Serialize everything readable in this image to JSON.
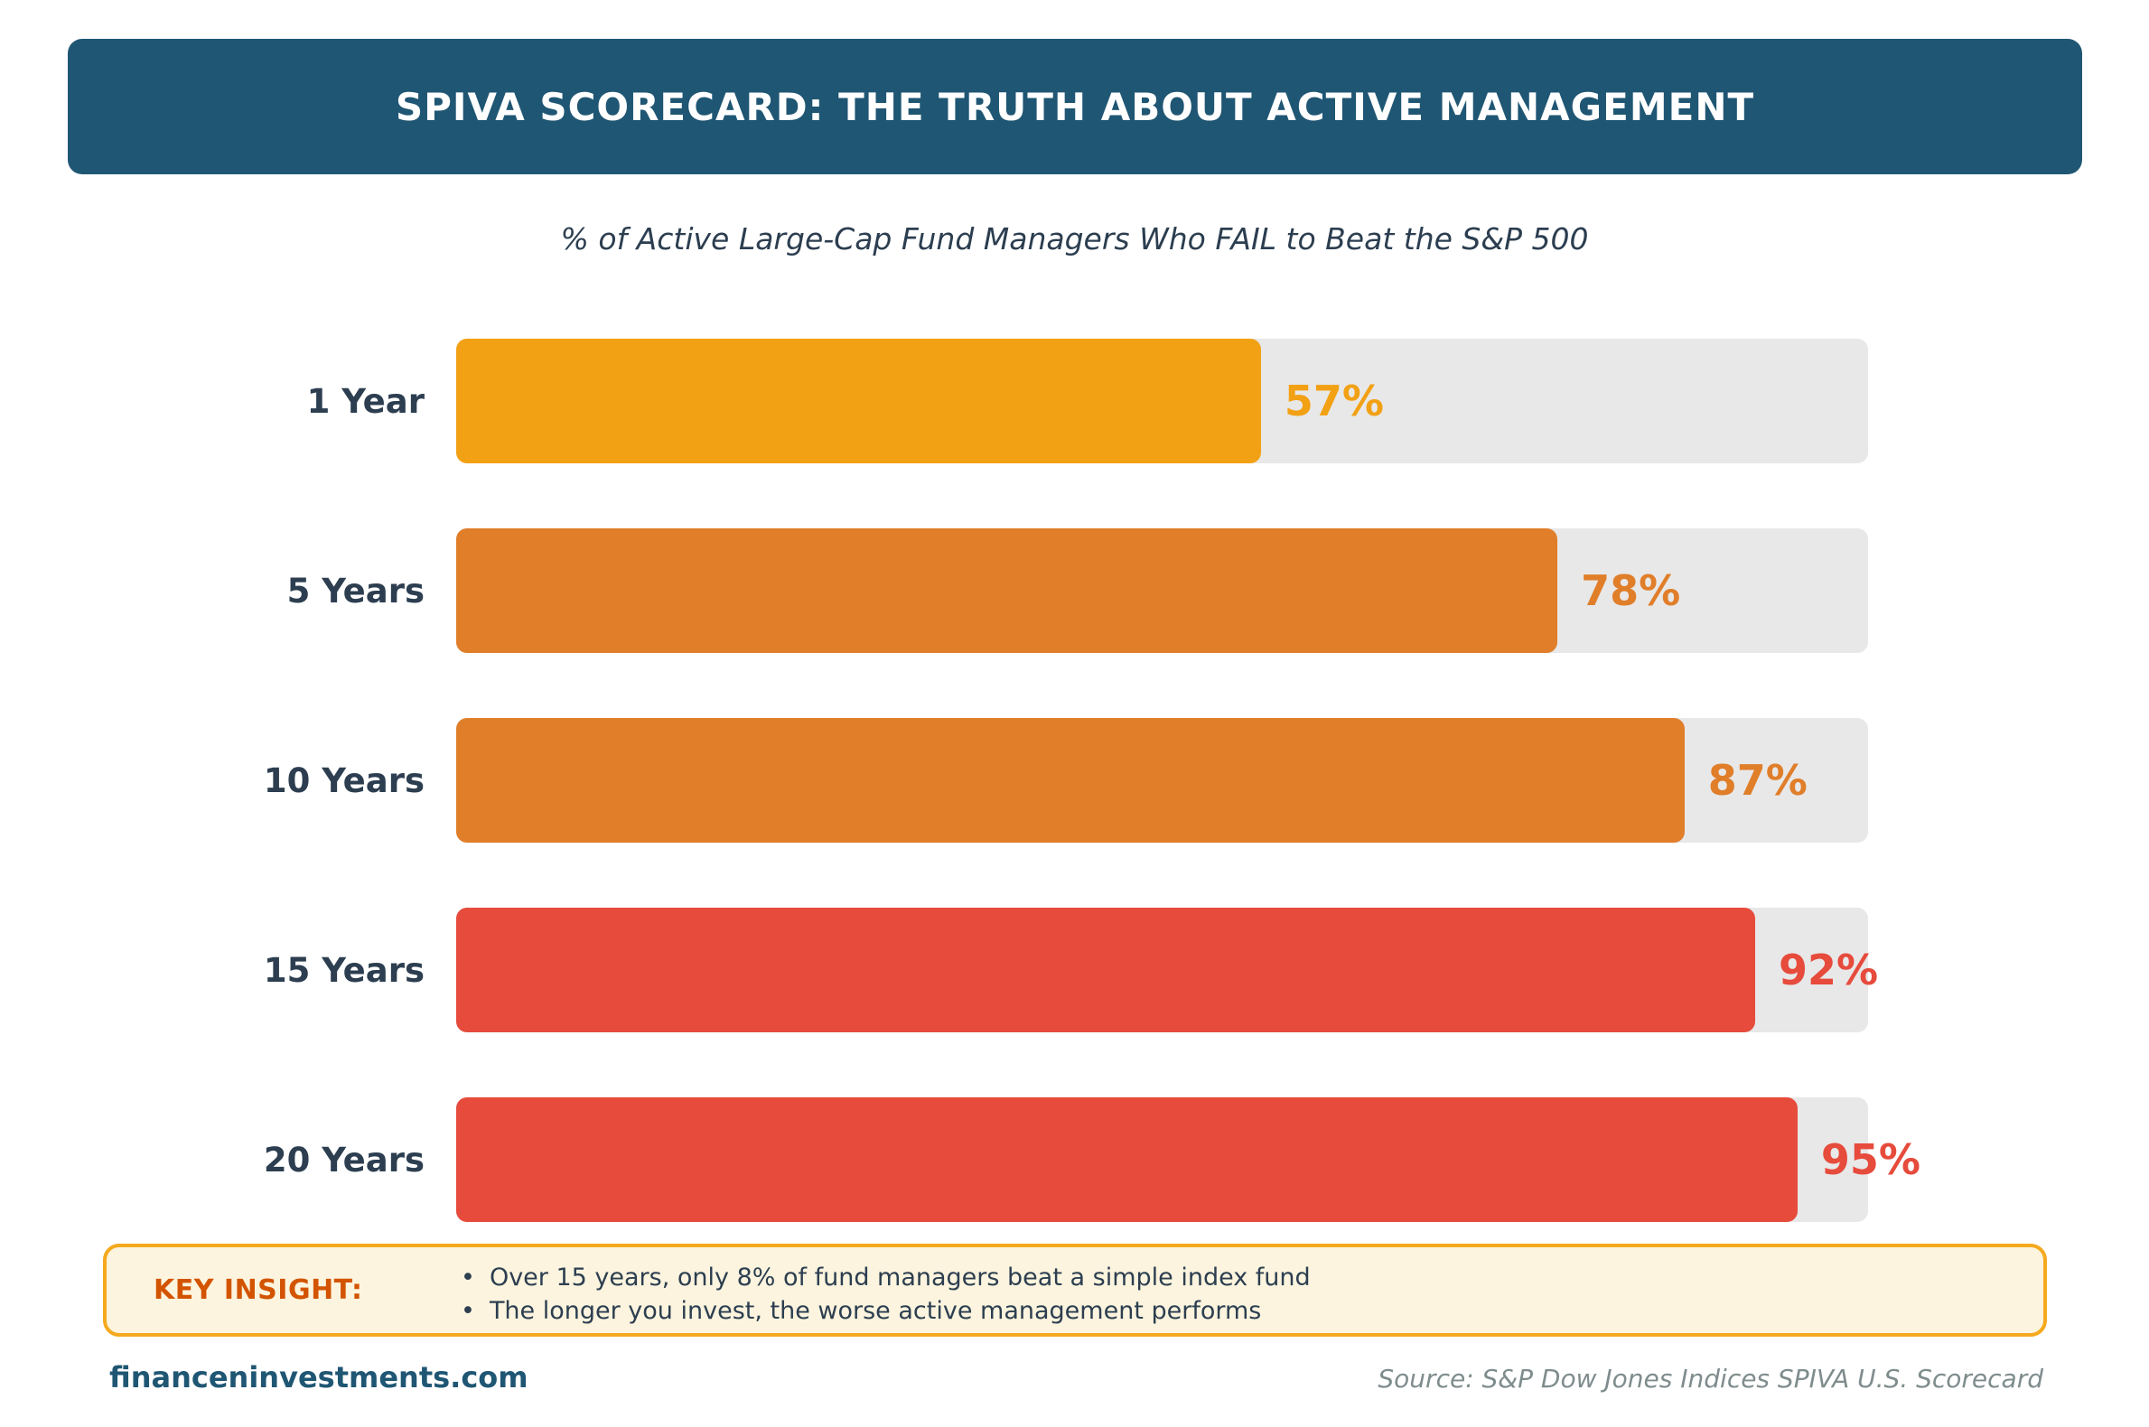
{
  "header": {
    "title": "SPIVA SCORECARD: THE TRUTH ABOUT ACTIVE MANAGEMENT"
  },
  "subtitle": "% of Active Large-Cap Fund Managers Who FAIL to Beat the S&P 500",
  "chart_data": {
    "type": "bar",
    "orientation": "horizontal",
    "title": "% of Active Large-Cap Fund Managers Who FAIL to Beat the S&P 500",
    "categories": [
      "1 Year",
      "5 Years",
      "10 Years",
      "15 Years",
      "20 Years"
    ],
    "values": [
      57,
      78,
      87,
      92,
      95
    ],
    "value_labels": [
      "57%",
      "78%",
      "87%",
      "92%",
      "95%"
    ],
    "bar_colors": [
      "#F2A115",
      "#E07E2A",
      "#E07E2A",
      "#E64B3C",
      "#E64B3C"
    ],
    "track_color": "#E8E8E8",
    "xlim": [
      0,
      100
    ],
    "grid": false,
    "legend": "none"
  },
  "insight": {
    "label": "KEY INSIGHT:",
    "bullets": [
      "Over 15 years, only 8% of fund managers beat a simple index fund",
      "The longer you invest, the worse active management performs"
    ]
  },
  "footer": {
    "brand": "financeninvestments.com",
    "source": "Source: S&P Dow Jones Indices SPIVA U.S. Scorecard"
  },
  "colors": {
    "header_bg": "#1F5673",
    "header_text": "#FFFFFF",
    "text_dark": "#2C3E50",
    "insight_bg": "#FCF4DE",
    "insight_border": "#F5A91E",
    "insight_label": "#D35400",
    "brand_text": "#1F5673",
    "source_text": "#7F8C8D"
  }
}
